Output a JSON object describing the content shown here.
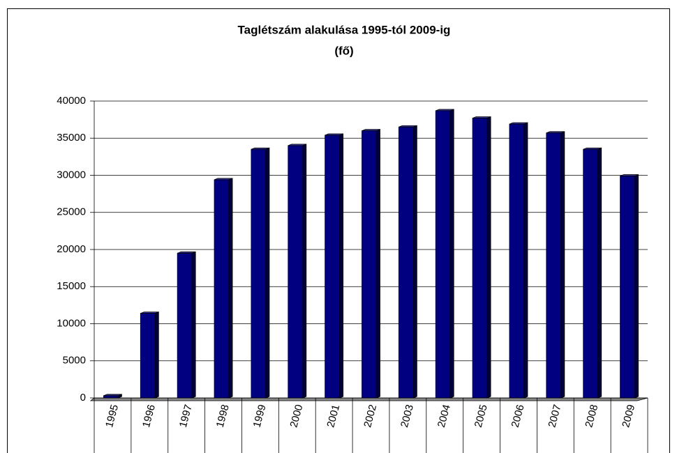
{
  "chart_data": {
    "type": "bar",
    "title": "Taglétszám alakulása 1995-tól 2009-ig",
    "subtitle": "(fő)",
    "categories": [
      "1995",
      "1996",
      "1997",
      "1998",
      "1999",
      "2000",
      "2001",
      "2002",
      "2003",
      "2004",
      "2005",
      "2006",
      "2007",
      "2008",
      "2009"
    ],
    "values": [
      300,
      11400,
      19500,
      29400,
      33500,
      34000,
      35400,
      36000,
      36500,
      38700,
      37700,
      36900,
      35700,
      33500,
      29900
    ],
    "color": "#000080",
    "ylim": [
      0,
      40000
    ],
    "yticks": [
      0,
      5000,
      10000,
      15000,
      20000,
      25000,
      30000,
      35000,
      40000
    ],
    "grid": true
  }
}
